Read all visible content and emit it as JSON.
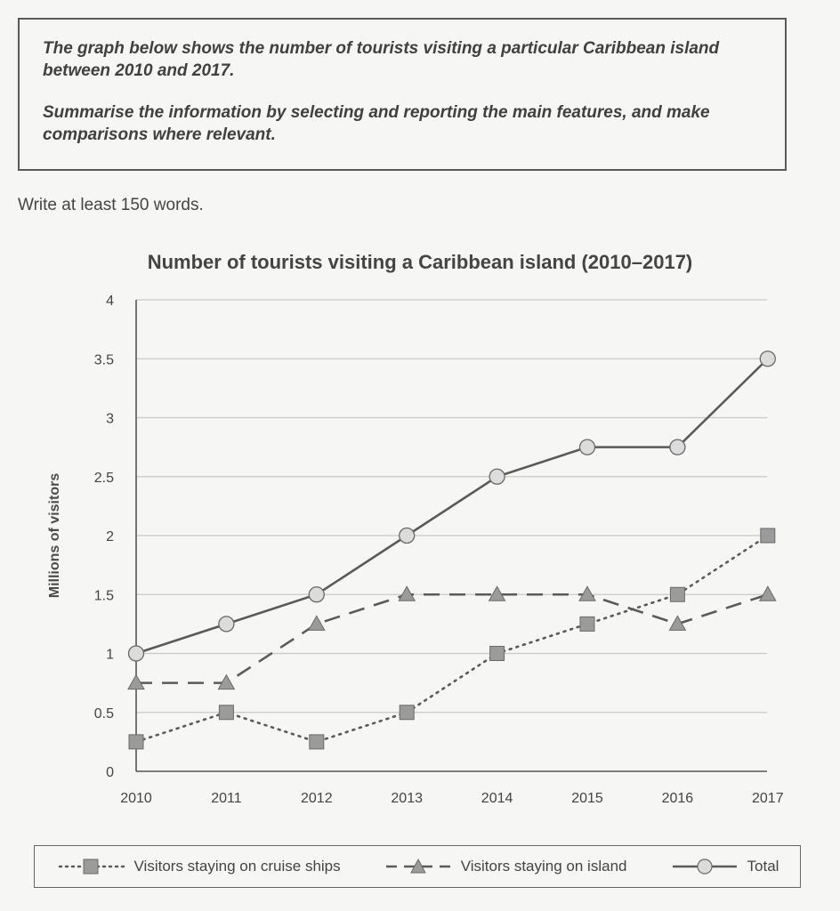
{
  "task": {
    "paragraph1": "The graph below shows the number of tourists visiting a particular Caribbean island between 2010 and 2017.",
    "paragraph2": "Summarise the information by selecting and reporting the main features, and make comparisons where relevant."
  },
  "instruction": "Write at least 150 words.",
  "chart_data": {
    "type": "line",
    "title": "Number of tourists visiting a Caribbean island (2010–2017)",
    "xlabel": "",
    "ylabel": "Millions of visitors",
    "x": [
      "2010",
      "2011",
      "2012",
      "2013",
      "2014",
      "2015",
      "2016",
      "2017"
    ],
    "yticks": [
      "0",
      "0.5",
      "1",
      "1.5",
      "2",
      "2.5",
      "3",
      "3.5",
      "4"
    ],
    "ylim": [
      0,
      4
    ],
    "grid": true,
    "legend_position": "bottom",
    "series": [
      {
        "name": "Visitors staying on cruise ships",
        "marker": "square",
        "line": "dotted",
        "values": [
          0.25,
          0.5,
          0.25,
          0.5,
          1.0,
          1.25,
          1.5,
          2.0
        ]
      },
      {
        "name": "Visitors staying on island",
        "marker": "triangle",
        "line": "dashed",
        "values": [
          0.75,
          0.75,
          1.25,
          1.5,
          1.5,
          1.5,
          1.25,
          1.5
        ]
      },
      {
        "name": "Total",
        "marker": "circle",
        "line": "solid",
        "values": [
          1.0,
          1.25,
          1.5,
          2.0,
          2.5,
          2.75,
          2.75,
          3.5
        ]
      }
    ],
    "colors": {
      "line": "#5a5a5a",
      "marker_fill": "#9b9b9b",
      "circle_fill": "#dcdcdc",
      "grid": "#c8c8c8"
    }
  }
}
